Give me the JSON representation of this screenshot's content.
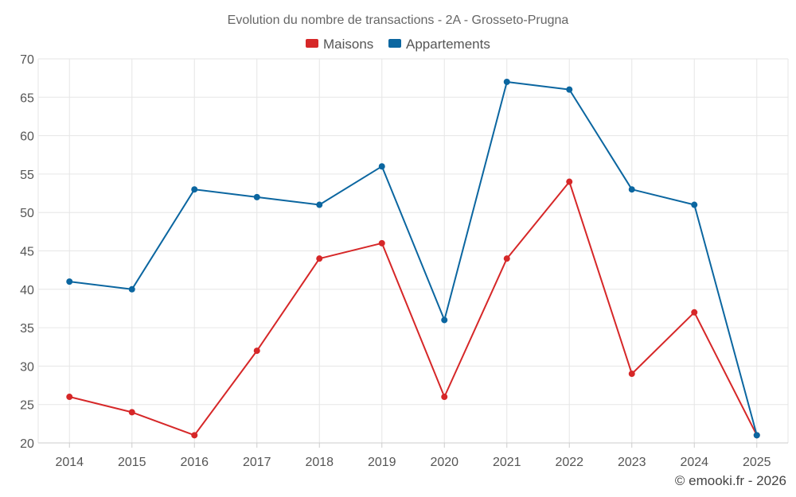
{
  "chart_data": {
    "type": "line",
    "title": "Evolution du nombre de transactions - 2A - Grosseto-Prugna",
    "categories": [
      "2014",
      "2015",
      "2016",
      "2017",
      "2018",
      "2019",
      "2020",
      "2021",
      "2022",
      "2023",
      "2024",
      "2025"
    ],
    "series": [
      {
        "name": "Maisons",
        "color": "#d62728",
        "values": [
          26,
          24,
          21,
          32,
          44,
          46,
          26,
          44,
          54,
          29,
          37,
          21
        ]
      },
      {
        "name": "Appartements",
        "color": "#0b66a0",
        "values": [
          41,
          40,
          53,
          52,
          51,
          56,
          36,
          67,
          66,
          53,
          51,
          21
        ]
      }
    ],
    "yticks": [
      20,
      25,
      30,
      35,
      40,
      45,
      50,
      55,
      60,
      65,
      70
    ],
    "ylim": [
      20,
      70
    ],
    "xlabel": "",
    "ylabel": "",
    "legend_position": "top-center",
    "grid": true
  },
  "credit": "© emooki.fr - 2026"
}
